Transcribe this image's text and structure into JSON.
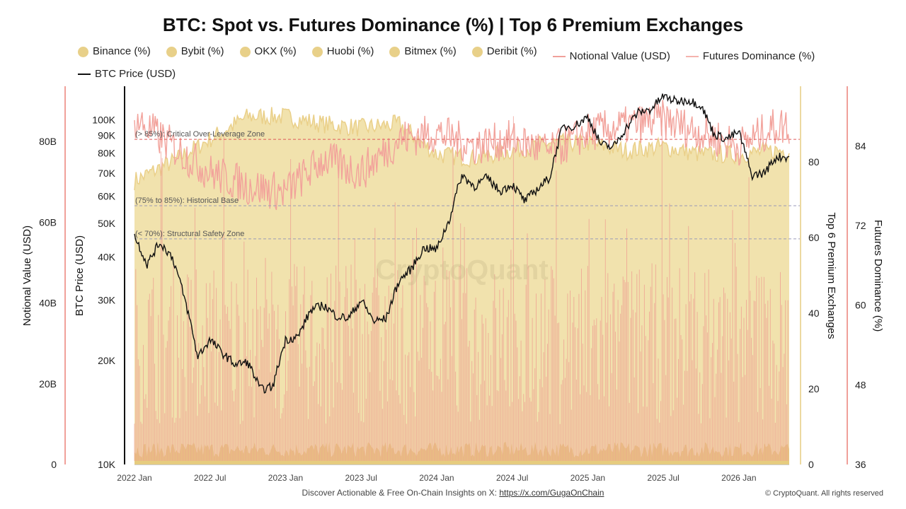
{
  "chart_data": {
    "type": "area",
    "title": "BTC: Spot vs. Futures Dominance (%) | Top 6 Premium Exchanges",
    "legend": [
      {
        "name": "Binance (%)",
        "kind": "dot",
        "color": "#e8d089"
      },
      {
        "name": "Bybit (%)",
        "kind": "dot",
        "color": "#e8d089"
      },
      {
        "name": "OKX (%)",
        "kind": "dot",
        "color": "#e8d089"
      },
      {
        "name": "Huobi (%)",
        "kind": "dot",
        "color": "#e8d089"
      },
      {
        "name": "Bitmex (%)",
        "kind": "dot",
        "color": "#e8d089"
      },
      {
        "name": "Deribit (%)",
        "kind": "dot",
        "color": "#e8d089"
      },
      {
        "name": "Notional Value (USD)",
        "kind": "line",
        "color": "#f0a09a"
      },
      {
        "name": "Futures Dominance (%)",
        "kind": "line",
        "color": "#f5b3ad"
      },
      {
        "name": "BTC Price (USD)",
        "kind": "line",
        "color": "#111111"
      }
    ],
    "axes": {
      "notional": {
        "label": "Notional Value (USD)",
        "ticks": [
          "0",
          "20B",
          "40B",
          "60B",
          "80B"
        ],
        "values": [
          0,
          20,
          40,
          60,
          80
        ],
        "range": [
          0,
          93.7
        ]
      },
      "price": {
        "label": "BTC Price (USD)",
        "ticks": [
          "10K",
          "20K",
          "30K",
          "40K",
          "50K",
          "60K",
          "70K",
          "80K",
          "90K",
          "100K"
        ],
        "values": [
          10000,
          20000,
          30000,
          40000,
          50000,
          60000,
          70000,
          80000,
          90000,
          100000
        ],
        "range": [
          10000,
          125000
        ],
        "scale": "log"
      },
      "exchanges": {
        "label": "Top 6 Premium Exchanges",
        "ticks": [
          "0",
          "20",
          "40",
          "60",
          "80"
        ],
        "values": [
          0,
          20,
          40,
          60,
          80
        ],
        "range": [
          0,
          100
        ]
      },
      "dominance": {
        "label": "Futures Dominance (%)",
        "ticks": [
          "36",
          "48",
          "60",
          "72",
          "84"
        ],
        "values": [
          36,
          48,
          60,
          72,
          84
        ],
        "range": [
          36,
          93
        ]
      }
    },
    "x_ticks": [
      "2022 Jan",
      "2022 Jul",
      "2023 Jan",
      "2023 Jul",
      "2024 Jan",
      "2024 Jul",
      "2025 Jan",
      "2025 Jul",
      "2026 Jan"
    ],
    "x_range": [
      "2022-01",
      "2026-05"
    ],
    "zones": [
      {
        "label": "(> 85%): Critical Over-Leverage Zone",
        "dominance": 85,
        "color": "#e05a5a",
        "style": "dashed"
      },
      {
        "label": "(75% to 85%): Historical Base",
        "dominance": 75,
        "color": "#9a9ab8",
        "style": "dashed"
      },
      {
        "label": "(< 70%): Structural Safety Zone",
        "dominance": 70,
        "color": "#9a9ab8",
        "style": "dashed"
      }
    ],
    "series": [
      {
        "name": "BTC Price (USD)",
        "axis": "price",
        "x": [
          "2022-01",
          "2022-02",
          "2022-03",
          "2022-04",
          "2022-05",
          "2022-06",
          "2022-07",
          "2022-08",
          "2022-09",
          "2022-10",
          "2022-11",
          "2022-12",
          "2023-01",
          "2023-02",
          "2023-03",
          "2023-04",
          "2023-05",
          "2023-06",
          "2023-07",
          "2023-08",
          "2023-09",
          "2023-10",
          "2023-11",
          "2023-12",
          "2024-01",
          "2024-02",
          "2024-03",
          "2024-04",
          "2024-05",
          "2024-06",
          "2024-07",
          "2024-08",
          "2024-09",
          "2024-10",
          "2024-11",
          "2024-12",
          "2025-01",
          "2025-02",
          "2025-03",
          "2025-04",
          "2025-05",
          "2025-06",
          "2025-07",
          "2025-08",
          "2025-09",
          "2025-10",
          "2025-11",
          "2025-12",
          "2026-01",
          "2026-02",
          "2026-03",
          "2026-04"
        ],
        "values": [
          46000,
          38000,
          44000,
          40000,
          30000,
          20500,
          23000,
          21000,
          19500,
          19800,
          16500,
          16800,
          23000,
          23500,
          28000,
          29000,
          27000,
          26500,
          30000,
          26000,
          26500,
          34000,
          37000,
          42500,
          42000,
          51000,
          69000,
          64000,
          68000,
          62000,
          65000,
          58000,
          63000,
          68000,
          95000,
          96000,
          102000,
          85000,
          83000,
          94000,
          105000,
          107000,
          117000,
          113000,
          114000,
          110000,
          91000,
          88000,
          92000,
          69000,
          70000,
          78000
        ]
      },
      {
        "name": "Futures Dominance (%)",
        "axis": "dominance",
        "x": [
          "2022-01",
          "2022-04",
          "2022-07",
          "2022-10",
          "2023-01",
          "2023-04",
          "2023-07",
          "2023-10",
          "2024-01",
          "2024-04",
          "2024-07",
          "2024-10",
          "2025-01",
          "2025-04",
          "2025-07",
          "2025-10",
          "2026-01",
          "2026-04"
        ],
        "values": [
          88,
          84,
          80,
          78,
          77,
          82,
          80,
          85,
          86,
          84,
          85,
          83,
          86,
          87,
          88,
          86,
          84,
          87
        ]
      },
      {
        "name": "Top 6 Premium Exchanges",
        "axis": "exchanges",
        "x": [
          "2022-01",
          "2022-04",
          "2022-07",
          "2022-10",
          "2023-01",
          "2023-04",
          "2023-07",
          "2023-10",
          "2024-01",
          "2024-04",
          "2024-07",
          "2024-10",
          "2025-01",
          "2025-04",
          "2025-07",
          "2025-10",
          "2026-01",
          "2026-04"
        ],
        "values": [
          75,
          80,
          86,
          92,
          92,
          90,
          89,
          90,
          82,
          81,
          83,
          85,
          85,
          83,
          84,
          82,
          82,
          83
        ]
      }
    ]
  },
  "watermark": "CryptoQuant",
  "footer": {
    "text": "Discover Actionable & Free On-Chain Insights on X: ",
    "link": "https://x.com/GugaOnChain"
  },
  "copyright": "© CryptoQuant. All rights reserved",
  "colors": {
    "area": "#f1e2ad",
    "area_top": "#ead08a",
    "dominance": "#f2a29b",
    "price": "#111111",
    "axis_left": "#f0a09a",
    "axis_right_area": "#ecd9a0"
  }
}
